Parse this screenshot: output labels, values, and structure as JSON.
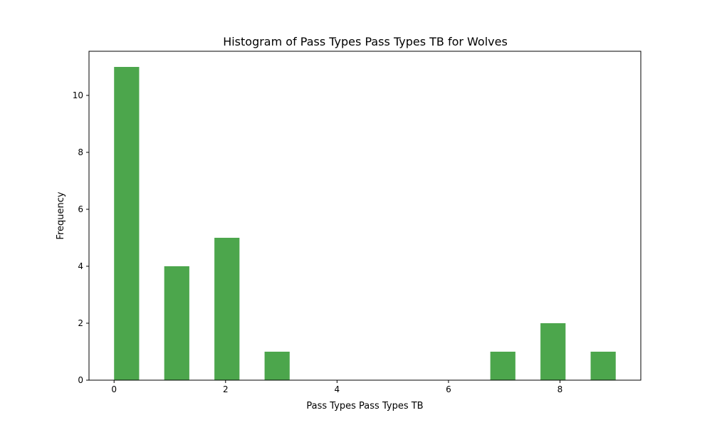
{
  "chart_data": {
    "type": "bar",
    "title": "Histogram of Pass Types Pass Types TB for Wolves",
    "xlabel": "Pass Types Pass Types TB",
    "ylabel": "Frequency",
    "xlim": [
      -0.45,
      9.45
    ],
    "ylim": [
      0,
      11.55
    ],
    "bar_width": 0.45,
    "bar_color": "#4ca64c",
    "grid": false,
    "x_ticks": [
      0,
      2,
      4,
      6,
      8
    ],
    "y_ticks": [
      0,
      2,
      4,
      6,
      8,
      10
    ],
    "bars": [
      {
        "x": 0.225,
        "count": 11
      },
      {
        "x": 1.125,
        "count": 4
      },
      {
        "x": 2.025,
        "count": 5
      },
      {
        "x": 2.925,
        "count": 1
      },
      {
        "x": 6.975,
        "count": 1
      },
      {
        "x": 7.875,
        "count": 2
      },
      {
        "x": 8.775,
        "count": 1
      }
    ]
  }
}
